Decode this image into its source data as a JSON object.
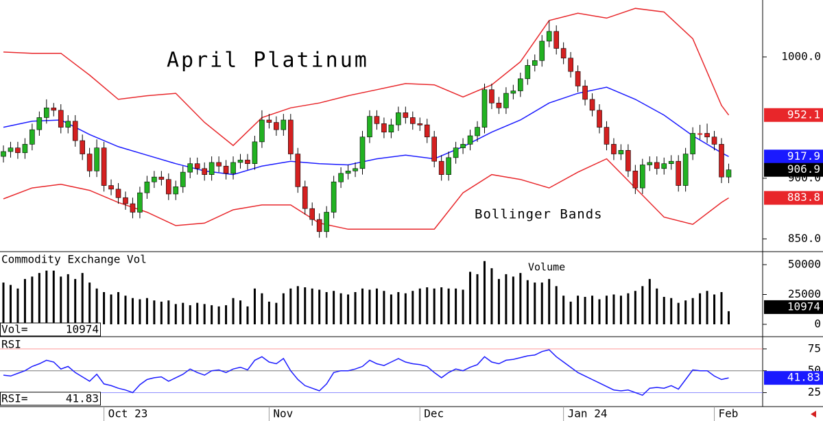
{
  "chart_data": [
    {
      "type": "candlestick",
      "title": "April Platinum",
      "annotation": "Bollinger Bands",
      "categories": [
        null,
        null,
        null,
        null,
        null,
        null,
        null,
        null,
        null,
        null,
        null,
        null,
        null,
        null,
        "Oct 23",
        null,
        null,
        null,
        null,
        null,
        null,
        null,
        null,
        null,
        null,
        null,
        null,
        null,
        null,
        null,
        null,
        null,
        null,
        null,
        null,
        null,
        null,
        "Nov",
        null,
        null,
        null,
        null,
        null,
        null,
        null,
        null,
        null,
        null,
        null,
        null,
        null,
        null,
        null,
        null,
        null,
        null,
        null,
        null,
        "Dec",
        null,
        null,
        null,
        null,
        null,
        null,
        null,
        null,
        null,
        null,
        null,
        null,
        null,
        null,
        null,
        null,
        null,
        null,
        null,
        "Jan 24",
        null,
        null,
        null,
        null,
        null,
        null,
        null,
        null,
        null,
        null,
        null,
        null,
        null,
        null,
        null,
        null,
        null,
        null,
        null,
        null,
        "Feb",
        null,
        null
      ],
      "open": [
        918,
        922,
        925,
        921,
        928,
        940,
        950,
        958,
        956,
        942,
        947,
        931,
        920,
        906,
        925,
        894,
        891,
        884,
        879,
        872,
        888,
        897,
        901,
        899,
        887,
        893,
        905,
        912,
        908,
        903,
        913,
        910,
        904,
        913,
        915,
        912,
        930,
        948,
        946,
        940,
        948,
        920,
        893,
        875,
        866,
        856,
        872,
        897,
        904,
        906,
        908,
        934,
        951,
        945,
        938,
        944,
        954,
        950,
        945,
        944,
        934,
        914,
        903,
        917,
        925,
        928,
        935,
        942,
        973,
        962,
        958,
        970,
        972,
        982,
        993,
        997,
        1013,
        1021,
        1007,
        999,
        988,
        976,
        965,
        956,
        942,
        928,
        920,
        923,
        906,
        892,
        911,
        913,
        908,
        912,
        914,
        894,
        920,
        937,
        937,
        934,
        928,
        901
      ],
      "high": [
        927,
        930,
        930,
        933,
        945,
        955,
        965,
        962,
        961,
        952,
        952,
        936,
        925,
        932,
        930,
        899,
        896,
        889,
        884,
        893,
        902,
        906,
        906,
        904,
        898,
        910,
        917,
        917,
        913,
        918,
        918,
        915,
        918,
        920,
        920,
        935,
        956,
        953,
        951,
        953,
        953,
        925,
        898,
        880,
        871,
        877,
        902,
        909,
        911,
        913,
        939,
        956,
        956,
        950,
        949,
        959,
        959,
        955,
        950,
        949,
        939,
        919,
        922,
        930,
        933,
        940,
        947,
        978,
        978,
        967,
        975,
        977,
        987,
        998,
        1002,
        1018,
        1030,
        1026,
        1012,
        1004,
        993,
        981,
        970,
        961,
        947,
        933,
        928,
        928,
        911,
        916,
        918,
        918,
        917,
        919,
        919,
        925,
        942,
        944,
        945,
        939,
        933,
        912
      ],
      "low": [
        913,
        917,
        916,
        916,
        923,
        935,
        945,
        951,
        937,
        937,
        926,
        915,
        901,
        901,
        889,
        886,
        879,
        874,
        867,
        867,
        883,
        892,
        894,
        882,
        882,
        888,
        900,
        903,
        898,
        898,
        905,
        899,
        899,
        908,
        907,
        907,
        925,
        941,
        935,
        935,
        915,
        888,
        870,
        861,
        851,
        851,
        867,
        892,
        899,
        901,
        903,
        929,
        940,
        933,
        933,
        939,
        945,
        940,
        939,
        929,
        909,
        898,
        898,
        912,
        920,
        923,
        930,
        937,
        957,
        953,
        953,
        965,
        967,
        977,
        988,
        992,
        1008,
        1002,
        994,
        983,
        971,
        960,
        951,
        937,
        923,
        915,
        915,
        901,
        887,
        887,
        906,
        903,
        903,
        907,
        889,
        889,
        915,
        932,
        929,
        923,
        896,
        896
      ],
      "close": [
        922,
        925,
        921,
        928,
        940,
        950,
        958,
        956,
        942,
        947,
        931,
        920,
        906,
        925,
        894,
        891,
        884,
        879,
        872,
        888,
        897,
        901,
        899,
        887,
        893,
        905,
        912,
        908,
        903,
        913,
        910,
        904,
        913,
        915,
        912,
        930,
        948,
        946,
        940,
        948,
        920,
        893,
        875,
        866,
        856,
        872,
        897,
        904,
        906,
        908,
        934,
        951,
        945,
        938,
        944,
        954,
        950,
        945,
        944,
        934,
        914,
        903,
        917,
        925,
        928,
        935,
        942,
        973,
        962,
        958,
        970,
        972,
        982,
        993,
        997,
        1013,
        1021,
        1007,
        999,
        988,
        976,
        965,
        956,
        942,
        928,
        920,
        923,
        906,
        892,
        911,
        913,
        908,
        912,
        914,
        894,
        920,
        937,
        937,
        934,
        928,
        901,
        906.9
      ],
      "up_color": "#22b222",
      "down_color": "#d42020",
      "readout_color": "#000000",
      "series": [
        {
          "color": "#e8262a",
          "x": [
            0,
            4,
            8,
            12,
            16,
            20,
            24,
            28,
            32,
            36,
            40,
            44,
            48,
            52,
            56,
            60,
            64,
            68,
            72,
            76,
            80,
            84,
            88,
            92,
            96,
            100,
            101
          ],
          "values": [
            1004,
            1003,
            1003,
            985,
            965,
            968,
            970,
            946,
            927,
            950,
            958,
            962,
            968,
            973,
            978,
            977,
            967,
            977,
            996,
            1030,
            1036,
            1032,
            1040,
            1037,
            1015,
            960,
            952.1
          ]
        },
        {
          "color": "#1a1aff",
          "x": [
            0,
            4,
            8,
            12,
            16,
            20,
            24,
            28,
            32,
            36,
            40,
            44,
            48,
            52,
            56,
            60,
            64,
            68,
            72,
            76,
            80,
            84,
            88,
            92,
            96,
            100,
            101
          ],
          "values": [
            942,
            947,
            948,
            936,
            926,
            919,
            912,
            906,
            903,
            910,
            914,
            912,
            911,
            916,
            919,
            916,
            926,
            938,
            948,
            962,
            970,
            975,
            965,
            952,
            935,
            921,
            917.9
          ]
        },
        {
          "color": "#e8262a",
          "x": [
            0,
            4,
            8,
            12,
            16,
            20,
            24,
            28,
            32,
            36,
            40,
            44,
            48,
            52,
            56,
            60,
            64,
            68,
            72,
            76,
            80,
            84,
            88,
            92,
            96,
            100,
            101
          ],
          "values": [
            883,
            892,
            895,
            890,
            880,
            872,
            861,
            863,
            874,
            878,
            878,
            863,
            858,
            858,
            858,
            858,
            888,
            903,
            899,
            892,
            905,
            916,
            892,
            868,
            862,
            880,
            883.8
          ]
        }
      ],
      "ylim": [
        839.5,
        1046.9
      ],
      "yticks": [
        {
          "value": 850,
          "label": "850.0"
        },
        {
          "value": 900,
          "label": "900.0"
        },
        {
          "value": 1000,
          "label": "1000.0"
        }
      ]
    },
    {
      "type": "bar",
      "title": "Commodity Exchange Vol",
      "annotation": "Volume",
      "readout_label": "Vol=",
      "values": [
        35000,
        33000,
        30000,
        38000,
        40000,
        43000,
        45000,
        45000,
        40000,
        42000,
        38000,
        43000,
        35000,
        30000,
        27000,
        25000,
        27000,
        24000,
        22000,
        21000,
        22000,
        20000,
        19000,
        20000,
        17000,
        18000,
        16000,
        18000,
        17000,
        16000,
        15000,
        16000,
        22000,
        20000,
        15000,
        30000,
        26000,
        19000,
        18000,
        26000,
        30000,
        32000,
        31000,
        30000,
        29000,
        27000,
        28000,
        26000,
        25000,
        27000,
        30000,
        29000,
        30000,
        28000,
        25000,
        27000,
        26000,
        28000,
        30000,
        31000,
        30000,
        31000,
        30000,
        30000,
        29000,
        44000,
        42000,
        53000,
        47000,
        38000,
        42000,
        40000,
        43000,
        37000,
        35000,
        35000,
        38000,
        32000,
        24000,
        19000,
        24000,
        23000,
        24000,
        21000,
        24000,
        25000,
        24000,
        26000,
        28000,
        32000,
        38000,
        30000,
        23000,
        22000,
        18000,
        20000,
        22000,
        26000,
        28000,
        25000,
        27000,
        10974
      ],
      "color": "#000000",
      "ylim": [
        -9770,
        60900
      ],
      "yticks": [
        0,
        25000,
        50000
      ]
    },
    {
      "type": "line",
      "title": "RSI",
      "readout_label": "RSI=",
      "values": [
        45,
        44,
        47,
        50,
        55,
        58,
        62,
        60,
        52,
        55,
        48,
        43,
        38,
        46,
        35,
        33,
        30,
        28,
        25,
        34,
        40,
        42,
        43,
        38,
        42,
        46,
        52,
        48,
        45,
        50,
        51,
        48,
        52,
        54,
        51,
        62,
        66,
        60,
        58,
        64,
        50,
        40,
        33,
        30,
        27,
        35,
        48,
        50,
        50,
        52,
        55,
        62,
        58,
        56,
        60,
        64,
        60,
        58,
        57,
        55,
        48,
        42,
        48,
        52,
        50,
        54,
        57,
        66,
        60,
        58,
        62,
        63,
        65,
        67,
        68,
        72,
        74,
        66,
        60,
        54,
        48,
        44,
        40,
        36,
        32,
        28,
        27,
        28,
        25,
        22,
        30,
        31,
        30,
        33,
        29,
        40,
        51,
        50,
        50,
        44,
        40,
        41.83
      ],
      "color": "#1a1aff",
      "ylim": [
        9,
        89
      ],
      "yticks": [
        25,
        50,
        75
      ],
      "grid_colors": [
        "#8888ff",
        "#777777",
        "#ff9999"
      ]
    }
  ]
}
